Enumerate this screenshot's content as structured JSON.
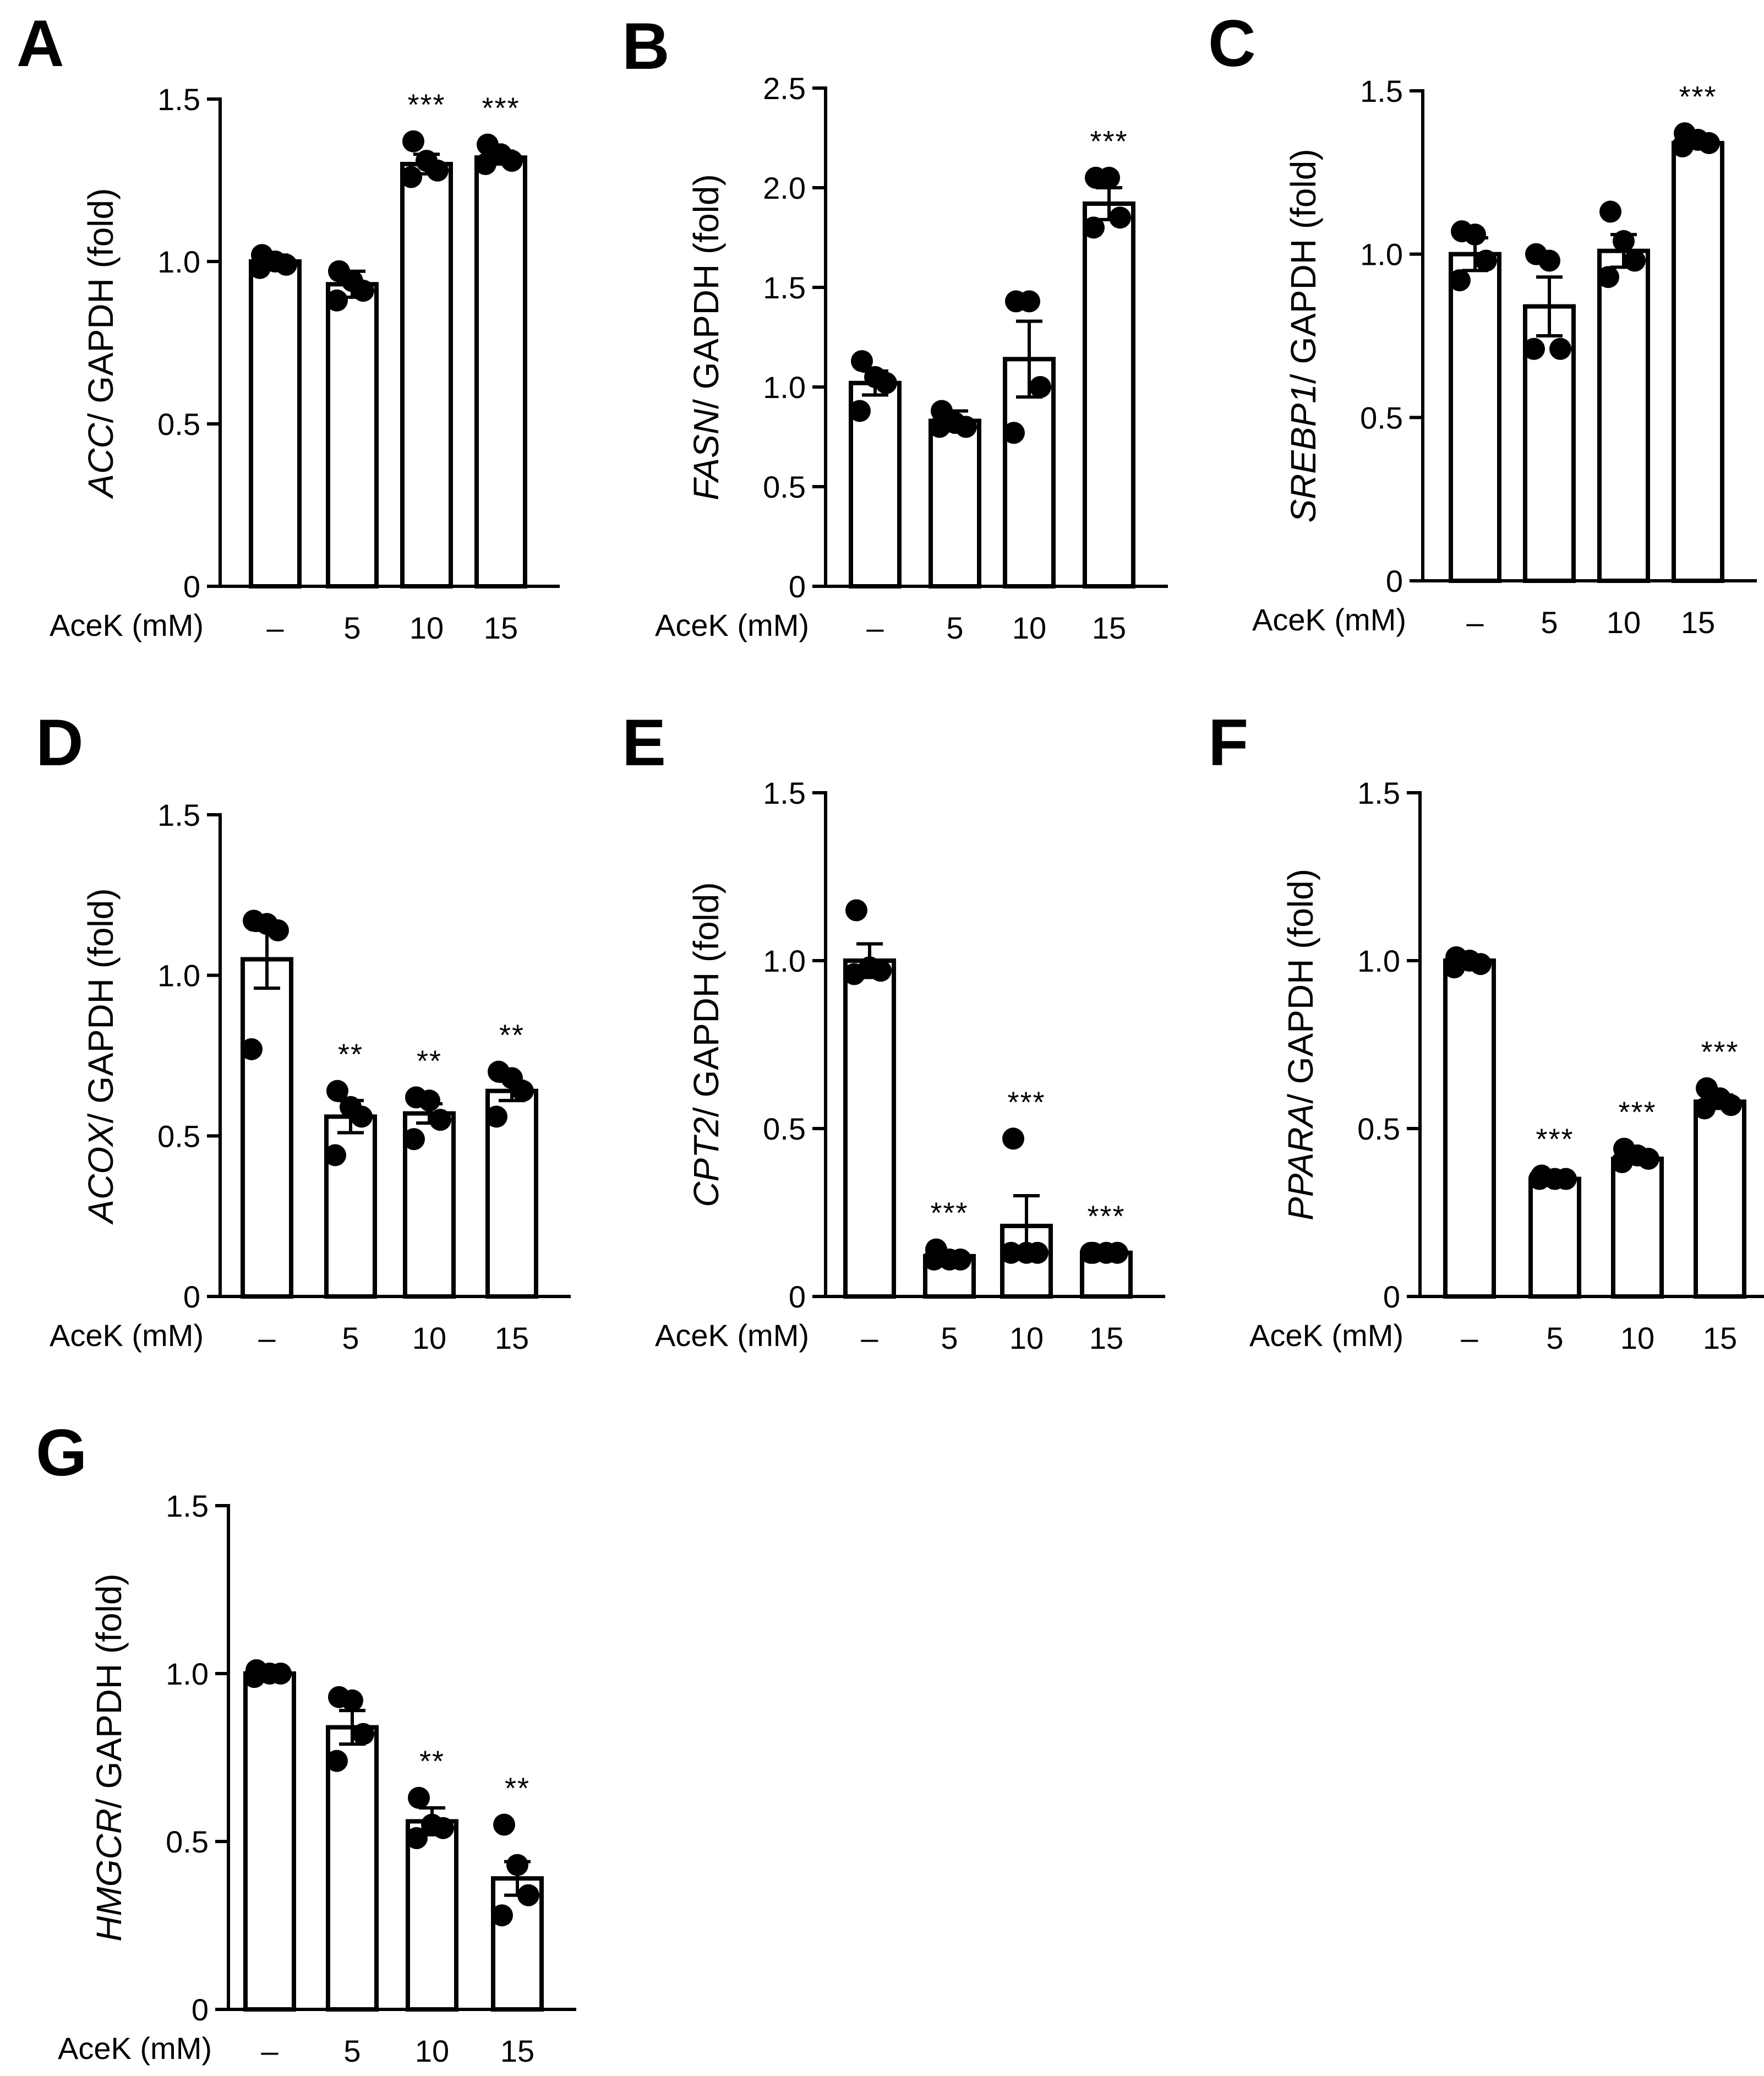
{
  "chart_data": [
    {
      "type": "bar",
      "panel": "A",
      "gene": "ACC",
      "ylabel_rest": "/ GAPDH (fold)",
      "xlabel": "AceK (mM)",
      "categories": [
        "–",
        "5",
        "10",
        "15"
      ],
      "yticks": [
        "0",
        "0.5",
        "1.0",
        "1.5"
      ],
      "ylim": [
        0,
        1.5
      ],
      "values": [
        1.0,
        0.93,
        1.3,
        1.32
      ],
      "sem": [
        0.02,
        0.04,
        0.03,
        0.02
      ],
      "points": [
        [
          1.02,
          1.0,
          0.99,
          0.98
        ],
        [
          0.97,
          0.94,
          0.91,
          0.88
        ],
        [
          1.37,
          1.31,
          1.28,
          1.26
        ],
        [
          1.36,
          1.33,
          1.31,
          1.3
        ]
      ],
      "significance": [
        "",
        "",
        "***",
        "***"
      ]
    },
    {
      "type": "bar",
      "panel": "B",
      "gene": "FASN",
      "ylabel_rest": "/ GAPDH (fold)",
      "xlabel": "AceK (mM)",
      "categories": [
        "–",
        "5",
        "10",
        "15"
      ],
      "yticks": [
        "0",
        "0.5",
        "1.0",
        "1.5",
        "2.0",
        "2.5"
      ],
      "ylim": [
        0,
        2.5
      ],
      "values": [
        1.02,
        0.83,
        1.14,
        1.92
      ],
      "sem": [
        0.06,
        0.05,
        0.19,
        0.08
      ],
      "points": [
        [
          1.13,
          1.05,
          1.02,
          0.88
        ],
        [
          0.88,
          0.82,
          0.8,
          0.8
        ],
        [
          1.43,
          1.43,
          1.0,
          0.77
        ],
        [
          2.05,
          2.05,
          1.85,
          1.8
        ]
      ],
      "significance": [
        "",
        "",
        "",
        "***"
      ]
    },
    {
      "type": "bar",
      "panel": "C",
      "gene": "SREBP1",
      "ylabel_rest": "/ GAPDH (fold)",
      "xlabel": "AceK (mM)",
      "categories": [
        "–",
        "5",
        "10",
        "15"
      ],
      "yticks": [
        "0",
        "0.5",
        "1.0",
        "1.5"
      ],
      "ylim": [
        0,
        1.5
      ],
      "values": [
        1.0,
        0.84,
        1.01,
        1.34
      ],
      "sem": [
        0.05,
        0.09,
        0.05,
        0.01
      ],
      "points": [
        [
          1.07,
          1.06,
          0.98,
          0.92
        ],
        [
          1.0,
          0.98,
          0.71,
          0.71
        ],
        [
          1.13,
          1.04,
          0.98,
          0.93
        ],
        [
          1.37,
          1.35,
          1.34,
          1.33
        ]
      ],
      "significance": [
        "",
        "",
        "",
        "***"
      ]
    },
    {
      "type": "bar",
      "panel": "D",
      "gene": "ACOX",
      "ylabel_rest": "/ GAPDH (fold)",
      "xlabel": "AceK (mM)",
      "categories": [
        "–",
        "5",
        "10",
        "15"
      ],
      "yticks": [
        "0",
        "0.5",
        "1.0",
        "1.5"
      ],
      "ylim": [
        0,
        1.5
      ],
      "values": [
        1.05,
        0.56,
        0.57,
        0.64
      ],
      "sem": [
        0.09,
        0.05,
        0.03,
        0.03
      ],
      "points": [
        [
          1.17,
          1.16,
          1.14,
          0.77
        ],
        [
          0.64,
          0.59,
          0.56,
          0.44
        ],
        [
          0.62,
          0.61,
          0.55,
          0.49
        ],
        [
          0.7,
          0.68,
          0.64,
          0.56
        ]
      ],
      "significance": [
        "",
        "**",
        "**",
        "**"
      ]
    },
    {
      "type": "bar",
      "panel": "E",
      "gene": "CPT2",
      "ylabel_rest": "/ GAPDH (fold)",
      "xlabel": "AceK (mM)",
      "categories": [
        "–",
        "5",
        "10",
        "15"
      ],
      "yticks": [
        "0",
        "0.5",
        "1.0",
        "1.5"
      ],
      "ylim": [
        0,
        1.5
      ],
      "values": [
        1.0,
        0.12,
        0.21,
        0.13
      ],
      "sem": [
        0.05,
        0.01,
        0.09,
        0.0
      ],
      "points": [
        [
          1.15,
          0.98,
          0.97,
          0.96
        ],
        [
          0.14,
          0.11,
          0.11,
          0.11
        ],
        [
          0.47,
          0.13,
          0.13,
          0.13
        ],
        [
          0.13,
          0.13,
          0.13,
          0.13
        ]
      ],
      "significance": [
        "",
        "***",
        "***",
        "***"
      ]
    },
    {
      "type": "bar",
      "panel": "F",
      "gene": "PPARA",
      "ylabel_rest": "/ GAPDH (fold)",
      "xlabel": "AceK (mM)",
      "categories": [
        "–",
        "5",
        "10",
        "15"
      ],
      "yticks": [
        "0",
        "0.5",
        "1.0",
        "1.5"
      ],
      "ylim": [
        0,
        1.5
      ],
      "values": [
        1.0,
        0.35,
        0.41,
        0.58
      ],
      "sem": [
        0.01,
        0.0,
        0.01,
        0.02
      ],
      "points": [
        [
          1.01,
          1.0,
          0.99,
          0.98
        ],
        [
          0.36,
          0.35,
          0.35,
          0.35
        ],
        [
          0.44,
          0.42,
          0.41,
          0.4
        ],
        [
          0.62,
          0.59,
          0.57,
          0.56
        ]
      ],
      "significance": [
        "",
        "***",
        "***",
        "***"
      ]
    },
    {
      "type": "bar",
      "panel": "G",
      "gene": "HMGCR",
      "ylabel_rest": "/ GAPDH (fold)",
      "xlabel": "AceK (mM)",
      "categories": [
        "–",
        "5",
        "10",
        "15"
      ],
      "yticks": [
        "0",
        "0.5",
        "1.0",
        "1.5"
      ],
      "ylim": [
        0,
        1.5
      ],
      "values": [
        1.0,
        0.84,
        0.56,
        0.39
      ],
      "sem": [
        0.01,
        0.05,
        0.04,
        0.05
      ],
      "points": [
        [
          1.01,
          1.0,
          1.0,
          0.99
        ],
        [
          0.93,
          0.92,
          0.82,
          0.74
        ],
        [
          0.63,
          0.55,
          0.54,
          0.51
        ],
        [
          0.55,
          0.43,
          0.34,
          0.28
        ]
      ],
      "significance": [
        "",
        "",
        "**",
        "**"
      ]
    }
  ]
}
